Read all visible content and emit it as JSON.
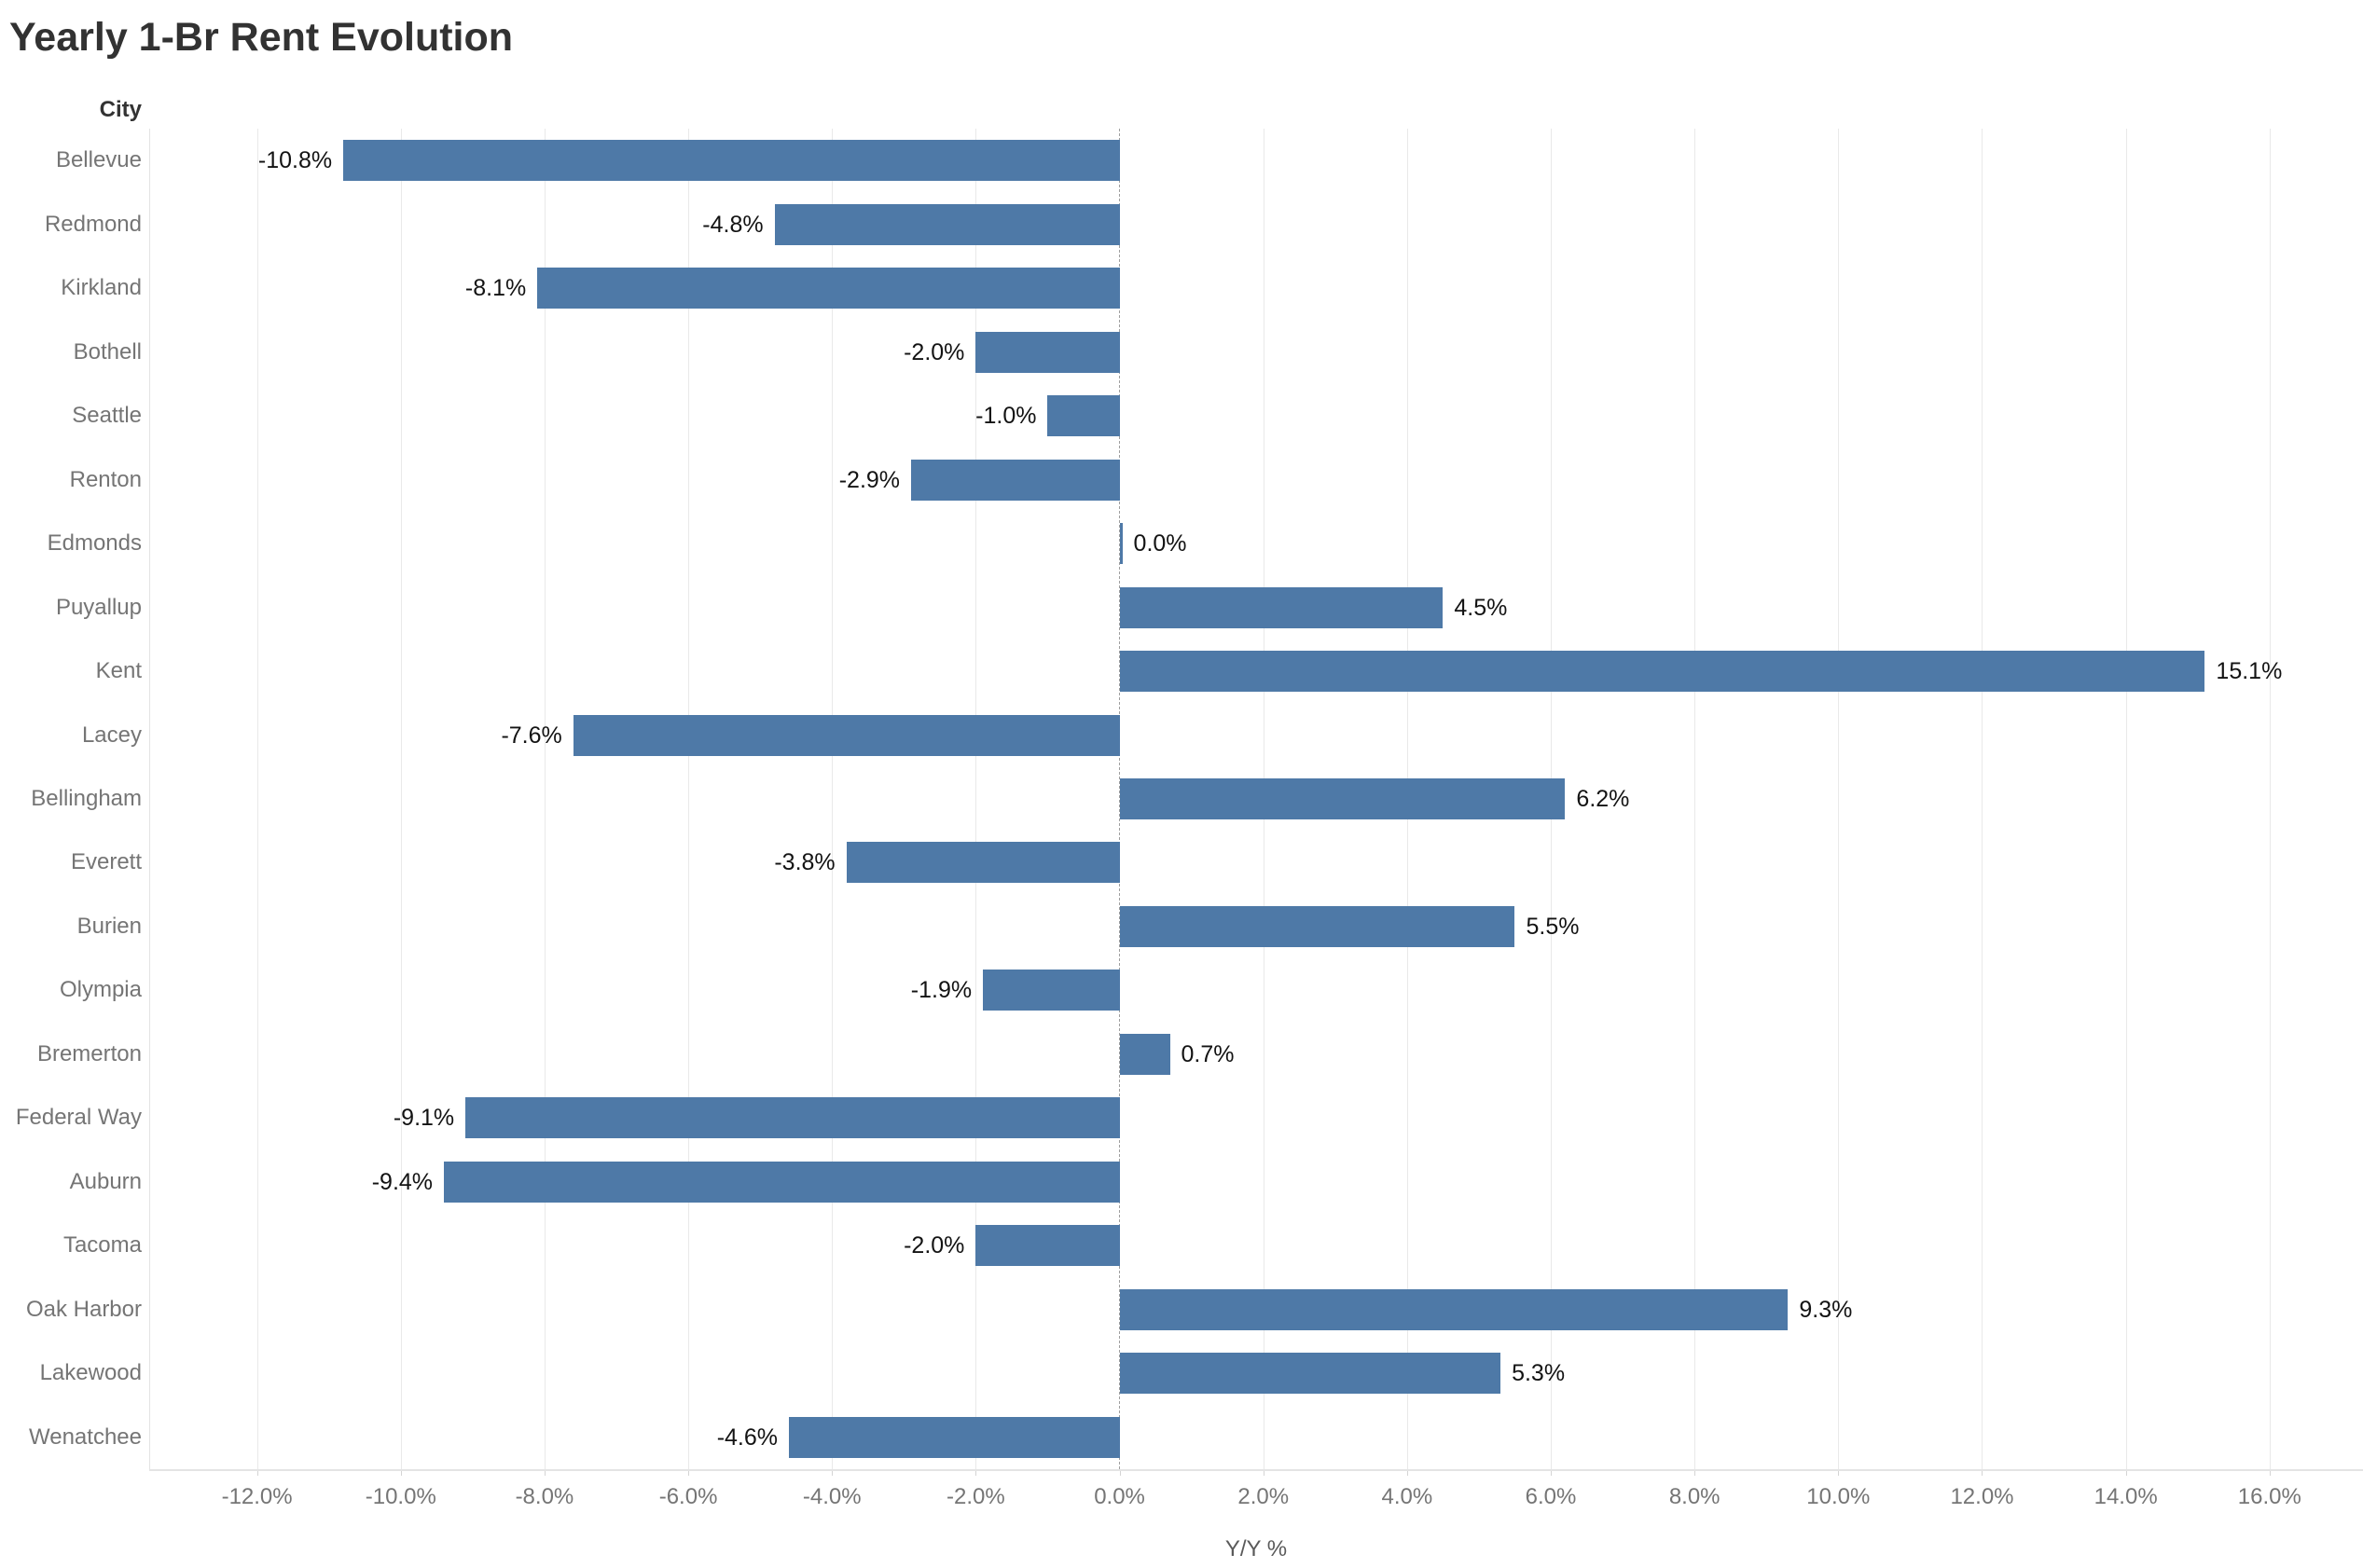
{
  "title": "Yearly 1-Br Rent Evolution",
  "chart_data": {
    "type": "bar",
    "orientation": "horizontal",
    "title": "Yearly 1-Br Rent Evolution",
    "category_axis_label": "City",
    "xlabel": "Y/Y %",
    "categories": [
      "Bellevue",
      "Redmond",
      "Kirkland",
      "Bothell",
      "Seattle",
      "Renton",
      "Edmonds",
      "Puyallup",
      "Kent",
      "Lacey",
      "Bellingham",
      "Everett",
      "Burien",
      "Olympia",
      "Bremerton",
      "Federal Way",
      "Auburn",
      "Tacoma",
      "Oak Harbor",
      "Lakewood",
      "Wenatchee"
    ],
    "values": [
      -10.8,
      -4.8,
      -8.1,
      -2.0,
      -1.0,
      -2.9,
      0.0,
      4.5,
      15.1,
      -7.6,
      6.2,
      -3.8,
      5.5,
      -1.9,
      0.7,
      -9.1,
      -9.4,
      -2.0,
      9.3,
      5.3,
      -4.6
    ],
    "value_labels": [
      "-10.8%",
      "-4.8%",
      "-8.1%",
      "-2.0%",
      "-1.0%",
      "-2.9%",
      "0.0%",
      "4.5%",
      "15.1%",
      "-7.6%",
      "6.2%",
      "-3.8%",
      "5.5%",
      "-1.9%",
      "0.7%",
      "-9.1%",
      "-9.4%",
      "-2.0%",
      "9.3%",
      "5.3%",
      "-4.6%"
    ],
    "xticks": [
      -12,
      -10,
      -8,
      -6,
      -4,
      -2,
      0,
      2,
      4,
      6,
      8,
      10,
      12,
      14,
      16
    ],
    "xtick_labels": [
      "-12.0%",
      "-10.0%",
      "-8.0%",
      "-6.0%",
      "-4.0%",
      "-2.0%",
      "0.0%",
      "2.0%",
      "4.0%",
      "6.0%",
      "8.0%",
      "10.0%",
      "12.0%",
      "14.0%",
      "16.0%"
    ],
    "xlim": [
      -13.5,
      17.3
    ],
    "grid": true,
    "legend": false,
    "zero_line_style": "dashed",
    "colors": {
      "bar": "#4e79a7",
      "title_text": "#323232",
      "axis_text": "#757575",
      "value_text": "#131313",
      "gridline": "#e9e9e9",
      "zero_line": "#9e9e9e"
    }
  }
}
